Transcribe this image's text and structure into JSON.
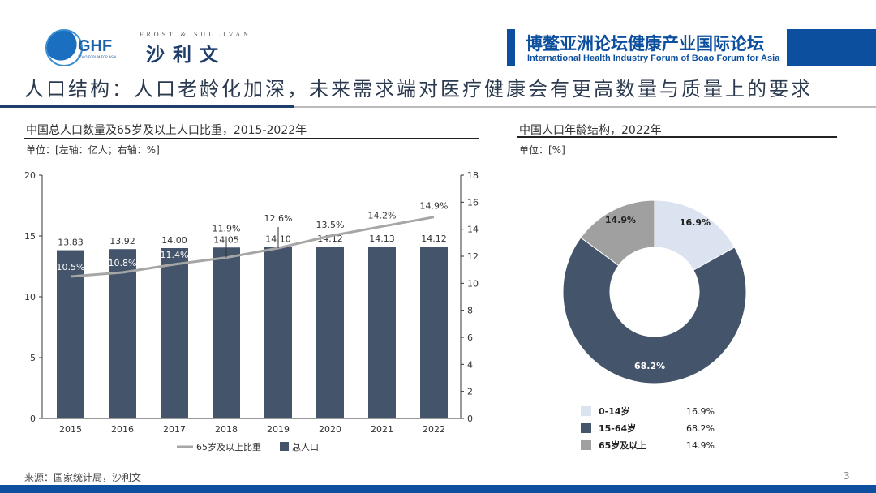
{
  "header": {
    "logo_ghf": "GHF",
    "logo_ghf_sub": "BOAO FORUM FOR ASIA",
    "frost_en": "FROST & SULLIVAN",
    "frost_cn": "沙利文",
    "forum_cn": "博鳌亚洲论坛健康产业国际论坛",
    "forum_en": "International Health Industry Forum of Boao Forum for Asia"
  },
  "title": "人口结构：人口老龄化加深，未来需求端对医疗健康会有更高数量与质量上的要求",
  "footer": {
    "source": "来源：国家统计局，沙利文",
    "page": "3"
  },
  "colors": {
    "bar": "#44546a",
    "line": "#a6a6a6",
    "light": "#dce3f0",
    "gray": "#a0a0a0",
    "brand": "#0c4f9e"
  },
  "chart_data": [
    {
      "type": "bar",
      "title": "中国总人口数量及65岁及以上人口比重，2015-2022年",
      "unit": "单位：[左轴：亿人；右轴：%]",
      "categories": [
        "2015",
        "2016",
        "2017",
        "2018",
        "2019",
        "2020",
        "2021",
        "2022"
      ],
      "series": [
        {
          "name": "总人口",
          "type": "bar",
          "axis": "left",
          "values": [
            13.83,
            13.92,
            14.0,
            14.05,
            14.1,
            14.12,
            14.13,
            14.12
          ],
          "labels": [
            "13.83",
            "13.92",
            "14.00",
            "14.05",
            "14.10",
            "14.12",
            "14.13",
            "14.12"
          ]
        },
        {
          "name": "65岁及以上比重",
          "type": "line",
          "axis": "right",
          "values": [
            10.5,
            10.8,
            11.4,
            11.9,
            12.6,
            13.5,
            14.2,
            14.9
          ],
          "labels": [
            "10.5%",
            "10.8%",
            "11.4%",
            "11.9%",
            "12.6%",
            "13.5%",
            "14.2%",
            "14.9%"
          ]
        }
      ],
      "ylim_left": [
        0,
        20
      ],
      "yticks_left": [
        "0",
        "5",
        "10",
        "15",
        "20"
      ],
      "ylim_right": [
        0,
        18
      ],
      "yticks_right": [
        "0",
        "2",
        "4",
        "6",
        "8",
        "10",
        "12",
        "14",
        "16",
        "18"
      ],
      "legend": "bottom"
    },
    {
      "type": "pie",
      "title": "中国人口年龄结构，2022年",
      "unit": "单位：[%]",
      "slices": [
        {
          "label": "0-14岁",
          "value": 16.9,
          "text": "16.9%",
          "color": "#dce3f0"
        },
        {
          "label": "15-64岁",
          "value": 68.2,
          "text": "68.2%",
          "color": "#44546a"
        },
        {
          "label": "65岁及以上",
          "value": 14.9,
          "text": "14.9%",
          "color": "#a0a0a0"
        }
      ],
      "legend": "bottom"
    }
  ]
}
